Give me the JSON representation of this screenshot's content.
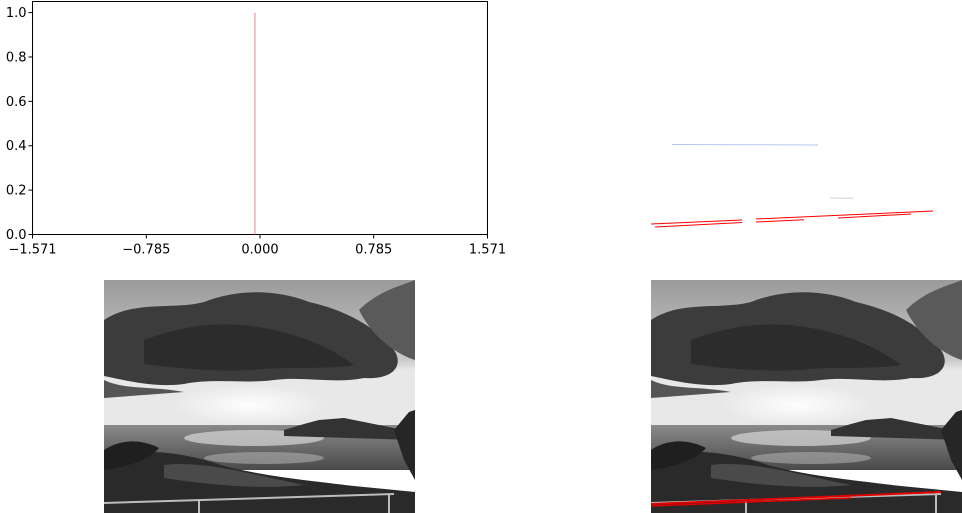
{
  "chart_data": [
    {
      "type": "bar",
      "x_ticks": [
        "−1.571",
        "−0.785",
        "0.000",
        "0.785",
        "1.571"
      ],
      "x_tick_values": [
        -1.571,
        -0.785,
        0.0,
        0.785,
        1.571
      ],
      "y_ticks": [
        "0.0",
        "0.2",
        "0.4",
        "0.6",
        "0.8",
        "1.0"
      ],
      "y_tick_values": [
        0.0,
        0.2,
        0.4,
        0.6,
        0.8,
        1.0
      ],
      "xlim": [
        -1.571,
        1.571
      ],
      "ylim": [
        0.0,
        1.05
      ],
      "x": [
        -0.035
      ],
      "values": [
        1.0
      ],
      "color": "#d98c8c",
      "grid": false
    }
  ],
  "detected_lines": [
    {
      "x1": 0,
      "y1": 0.5,
      "x2": 1,
      "y2": 0.5
    }
  ],
  "colors": {
    "line_red": "#ff0000",
    "line_blue": "#3a5bd9"
  }
}
